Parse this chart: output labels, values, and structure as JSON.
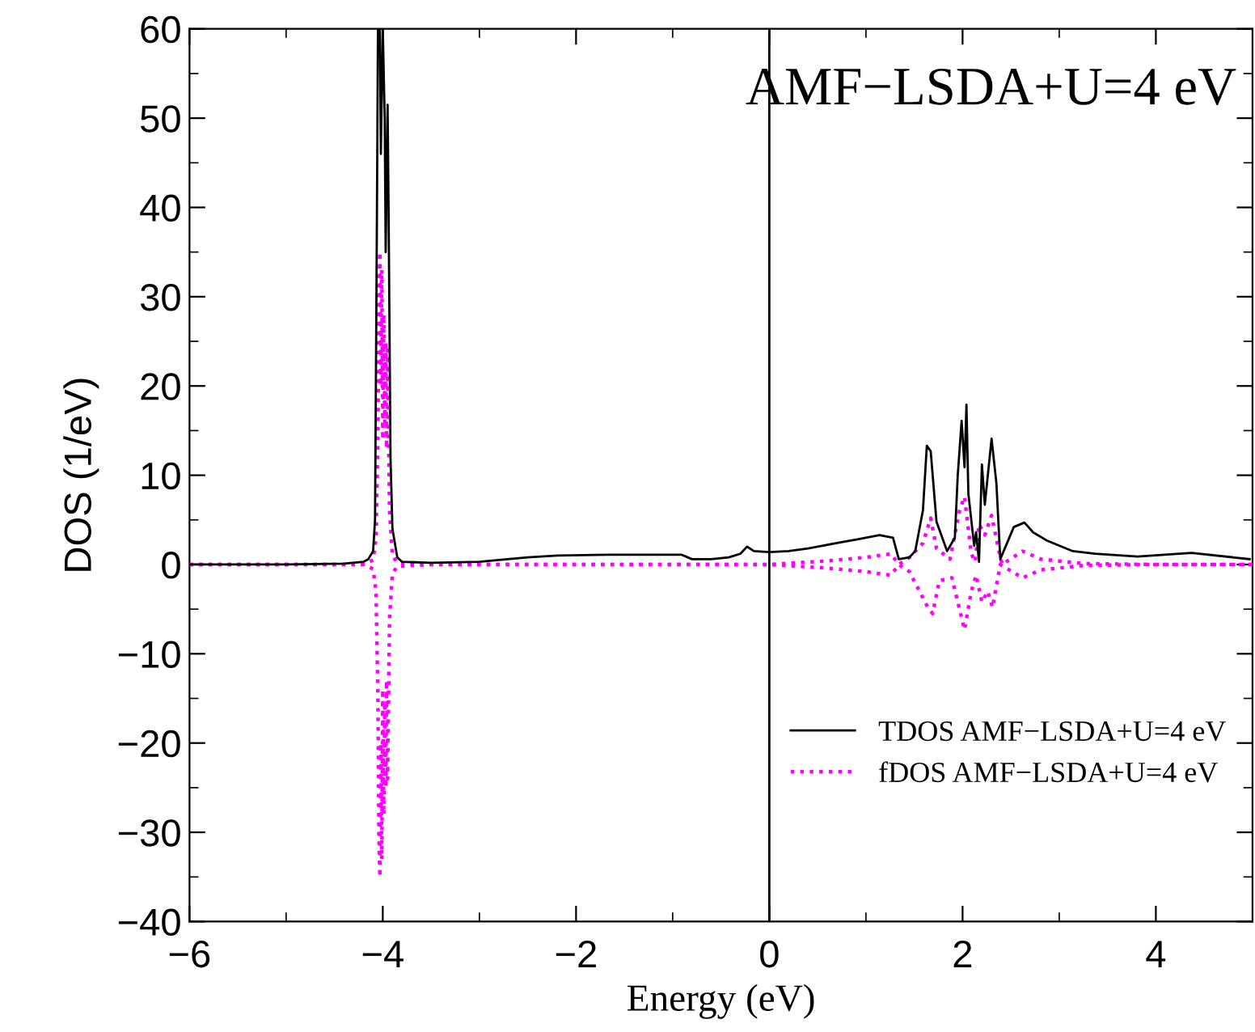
{
  "chart_data": {
    "type": "line",
    "xlabel": "Energy (eV)",
    "ylabel": "DOS (1/eV)",
    "xlim": [
      -6,
      5
    ],
    "xticks": [
      -6,
      -4,
      -2,
      0,
      2,
      4
    ],
    "ylim": [
      -40,
      60
    ],
    "yticks": [
      -40,
      -30,
      -20,
      -10,
      0,
      10,
      20,
      30,
      40,
      50,
      60
    ],
    "grid": false,
    "legend": "lower right",
    "marker": "none",
    "annotations": [
      "AMF−LSDA+U=4 eV"
    ],
    "ref_lines": [
      {
        "axis": "x",
        "value": 0,
        "color": "#000000",
        "line_style": "solid"
      }
    ],
    "series": [
      {
        "name": "TDOS AMF−LSDA+U=4 eV",
        "color": "#000000",
        "line_style": "solid",
        "x": [
          -6,
          -5,
          -4.4,
          -4.2,
          -4.15,
          -4.1,
          -4.08,
          -4.06,
          -4.05,
          -4.03,
          -4.02,
          -4.0,
          -3.98,
          -3.97,
          -3.95,
          -3.94,
          -3.92,
          -3.9,
          -3.85,
          -3.8,
          -3.5,
          -3.0,
          -2.8,
          -2.5,
          -2.19,
          -1.67,
          -1.2,
          -0.91,
          -0.8,
          -0.6,
          -0.42,
          -0.3,
          -0.23,
          -0.16,
          0.0,
          0.2,
          0.4,
          0.7,
          0.9,
          1.14,
          1.28,
          1.34,
          1.45,
          1.51,
          1.59,
          1.63,
          1.67,
          1.73,
          1.84,
          1.92,
          1.95,
          1.99,
          2.02,
          2.04,
          2.06,
          2.12,
          2.14,
          2.17,
          2.2,
          2.23,
          2.3,
          2.35,
          2.39,
          2.53,
          2.64,
          2.73,
          2.87,
          3.14,
          3.37,
          3.81,
          4.37,
          4.97
        ],
        "values": [
          0,
          0,
          0.1,
          0.3,
          0.6,
          1.5,
          5,
          40,
          60,
          60,
          46,
          60,
          50,
          35,
          51.5,
          40,
          12,
          4,
          0.8,
          0.3,
          0.2,
          0.3,
          0.5,
          0.8,
          1.0,
          1.1,
          1.1,
          1.1,
          0.6,
          0.6,
          0.8,
          1.2,
          2.0,
          1.5,
          1.4,
          1.5,
          1.8,
          2.4,
          2.8,
          3.3,
          3.0,
          0.6,
          0.8,
          1.5,
          6.1,
          13.3,
          12.7,
          4.8,
          1.5,
          3.0,
          10.0,
          16.1,
          10.9,
          17.9,
          7.9,
          2.1,
          3.6,
          0.3,
          11.2,
          6.7,
          14.1,
          9.1,
          0.6,
          4.2,
          4.7,
          3.6,
          2.7,
          1.5,
          1.2,
          0.9,
          1.3,
          0.6
        ]
      },
      {
        "name": "fDOS AMF−LSDA+U=4 eV",
        "color": "#ff00ff",
        "line_style": "dotted",
        "x": [
          -6,
          -4.2,
          -4.1,
          -4.07,
          -4.05,
          -4.04,
          -4.03,
          -4.02,
          -4.01,
          -4.0,
          -3.99,
          -3.98,
          -3.97,
          -3.96,
          -3.95,
          -3.93,
          -3.9,
          -3.85,
          -3.5,
          0,
          0.6,
          1.0,
          1.26,
          1.34,
          1.45,
          1.59,
          1.67,
          1.73,
          1.87,
          1.97,
          2.02,
          2.09,
          2.13,
          2.17,
          2.23,
          2.3,
          2.37,
          2.41,
          2.62,
          2.81,
          3.26,
          4.0,
          5.0
        ],
        "values": [
          0,
          0,
          0.5,
          3,
          15,
          30,
          35,
          20,
          33,
          14,
          28,
          16,
          25,
          13,
          24,
          6,
          1,
          0.2,
          0,
          0,
          0.4,
          0.8,
          1.2,
          0,
          0.8,
          2.4,
          5.2,
          1.8,
          0.6,
          6.1,
          7.6,
          1.2,
          0.3,
          4.5,
          3.3,
          5.5,
          1.8,
          0,
          1.5,
          0.6,
          0.1,
          0,
          0
        ]
      },
      {
        "color": "#ff00ff",
        "line_style": "dotted",
        "x": [
          -6,
          -4.2,
          -4.1,
          -4.07,
          -4.05,
          -4.04,
          -4.03,
          -4.02,
          -4.01,
          -4.0,
          -3.99,
          -3.98,
          -3.97,
          -3.96,
          -3.95,
          -3.93,
          -3.9,
          -3.85,
          -3.5,
          0,
          0.6,
          1.0,
          1.26,
          1.34,
          1.45,
          1.64,
          1.69,
          1.76,
          1.89,
          1.95,
          2.02,
          2.09,
          2.14,
          2.2,
          2.26,
          2.31,
          2.39,
          2.62,
          2.81,
          3.26,
          4.0,
          5.0
        ],
        "values": [
          0,
          0,
          -0.5,
          -3,
          -15,
          -30,
          -35,
          -20,
          -33,
          -14,
          -28,
          -16,
          -25,
          -13,
          -24,
          -6,
          -1,
          -0.2,
          0,
          0,
          -0.4,
          -0.8,
          -1.2,
          0,
          -0.8,
          -4.8,
          -5.5,
          -1.8,
          -1.5,
          -4.2,
          -7.3,
          -3.0,
          -1.2,
          -4.2,
          -3.0,
          -4.8,
          0,
          -1.5,
          -0.6,
          -0.1,
          0,
          0
        ]
      }
    ]
  }
}
